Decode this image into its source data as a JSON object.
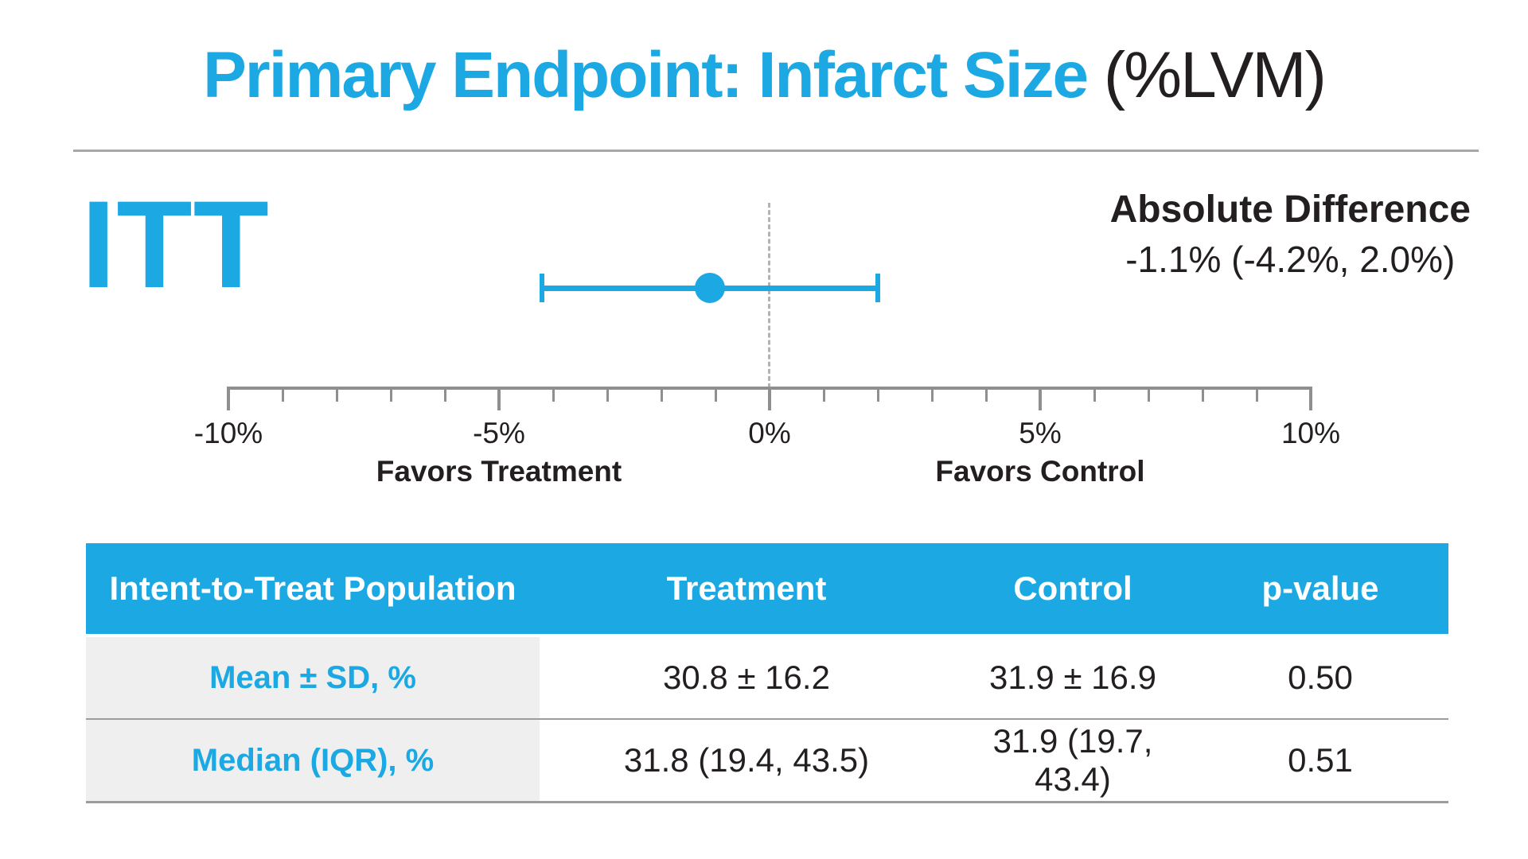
{
  "title": {
    "main": "Primary Endpoint: Infarct Size",
    "suffix": " (%LVM)"
  },
  "population_label": "ITT",
  "annotation": {
    "heading": "Absolute Difference",
    "value": "-1.1% (-4.2%, 2.0%)"
  },
  "chart_data": {
    "type": "forest",
    "series": [
      {
        "name": "ITT",
        "point": -1.1,
        "ci_low": -4.2,
        "ci_high": 2.0
      }
    ],
    "x_axis": {
      "min": -10,
      "max": 10,
      "minor_step": 1,
      "major_step": 5,
      "major_tick_labels": [
        "-10%",
        "-5%",
        "0%",
        "5%",
        "10%"
      ]
    },
    "reference_line": 0,
    "direction_labels": {
      "left": "Favors Treatment",
      "right": "Favors Control"
    },
    "grid": "off",
    "annotation_text": "Absolute Difference -1.1% (-4.2%, 2.0%)"
  },
  "table": {
    "headers": [
      "Intent-to-Treat Population",
      "Treatment",
      "Control",
      "p-value"
    ],
    "rows": [
      {
        "label": "Mean ± SD, %",
        "values": [
          "30.8 ± 16.2",
          "31.9 ± 16.9",
          "0.50"
        ]
      },
      {
        "label": "Median (IQR), %",
        "values": [
          "31.8 (19.4, 43.5)",
          "31.9 (19.7, 43.4)",
          "0.51"
        ]
      }
    ]
  },
  "colors": {
    "accent_blue": "#1CA8E2",
    "text_black": "#231F20",
    "line_gray": "#8F8F8F",
    "divider_gray": "#A8A8A8",
    "dashed_gray": "#B3B3B3",
    "cell_gray": "#EFEFEF",
    "header_text": "#FFFFFF"
  }
}
